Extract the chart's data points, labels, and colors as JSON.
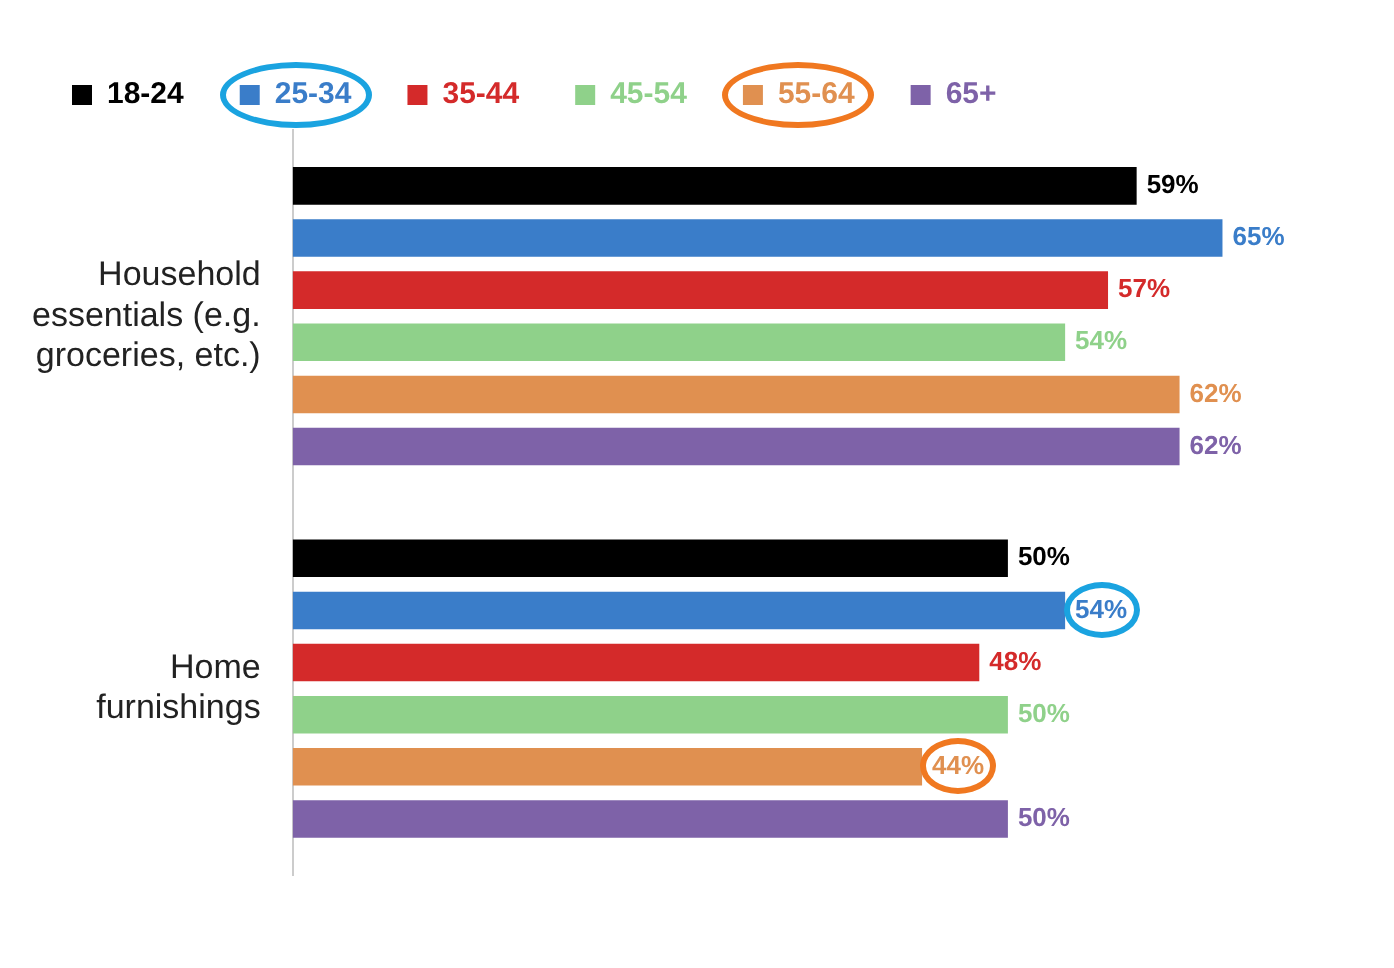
{
  "chart_data": {
    "type": "bar",
    "orientation": "horizontal",
    "categories": [
      "Household essentials (e.g. groceries, etc.)",
      "Home furnishings"
    ],
    "series": [
      {
        "name": "18-24",
        "color": "#000000",
        "values": [
          59,
          50
        ],
        "value_labels": [
          "59%",
          "50%"
        ]
      },
      {
        "name": "25-34",
        "color": "#3a7dc9",
        "values": [
          65,
          54
        ],
        "value_labels": [
          "65%",
          "54%"
        ]
      },
      {
        "name": "35-44",
        "color": "#d42a2a",
        "values": [
          57,
          48
        ],
        "value_labels": [
          "57%",
          "48%"
        ]
      },
      {
        "name": "45-54",
        "color": "#8fd18a",
        "values": [
          54,
          50
        ],
        "value_labels": [
          "54%",
          "50%"
        ]
      },
      {
        "name": "55-64",
        "color": "#e09050",
        "values": [
          62,
          44
        ],
        "value_labels": [
          "62%",
          "44%"
        ]
      },
      {
        "name": "65+",
        "color": "#7e62a8",
        "values": [
          62,
          50
        ],
        "value_labels": [
          "62%",
          "50%"
        ]
      }
    ],
    "tick_labels": "y",
    "legend": "top"
  }
}
